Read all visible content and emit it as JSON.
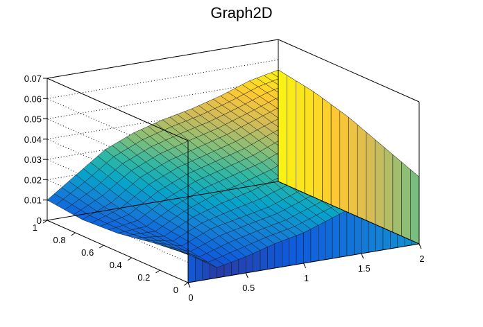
{
  "chart_data": {
    "type": "surface",
    "title": "Graph2D",
    "xlabel": "",
    "ylabel": "",
    "zlabel": "",
    "xlim": [
      0,
      2
    ],
    "ylim": [
      0,
      1
    ],
    "zlim": [
      0,
      0.07
    ],
    "x_ticks": [
      "0",
      "0.5",
      "1",
      "1.5",
      "2"
    ],
    "y_ticks": [
      "0",
      "0.2",
      "0.4",
      "0.6",
      "0.8",
      "1"
    ],
    "z_ticks": [
      "0",
      "0.01",
      "0.02",
      "0.03",
      "0.04",
      "0.05",
      "0.06",
      "0.07"
    ],
    "grid": true,
    "colormap": [
      "#352a87",
      "#0f5cdd",
      "#1481d6",
      "#06a4ca",
      "#2eb7a4",
      "#87bf77",
      "#d1bb59",
      "#fec832",
      "#f9fb0e"
    ],
    "surface_description": "sampled grid; rows are y from 1 (back) to 0 (front), columns are x from 0 to 2",
    "x_grid": [
      0,
      0.25,
      0.5,
      0.75,
      1.0,
      1.25,
      1.5,
      1.75,
      2.0
    ],
    "y_grid": [
      1.0,
      0.75,
      0.5,
      0.25,
      0.0
    ],
    "z_grid": [
      [
        0.01,
        0.02,
        0.03,
        0.036,
        0.04,
        0.043,
        0.047,
        0.052,
        0.055
      ],
      [
        0.008,
        0.014,
        0.024,
        0.03,
        0.034,
        0.038,
        0.043,
        0.048,
        0.052
      ],
      [
        0.009,
        0.01,
        0.018,
        0.024,
        0.028,
        0.032,
        0.038,
        0.043,
        0.047
      ],
      [
        0.012,
        0.008,
        0.014,
        0.017,
        0.02,
        0.025,
        0.03,
        0.036,
        0.04
      ],
      [
        0.014,
        0.005,
        0.008,
        0.012,
        0.015,
        0.02,
        0.025,
        0.03,
        0.033
      ]
    ]
  }
}
